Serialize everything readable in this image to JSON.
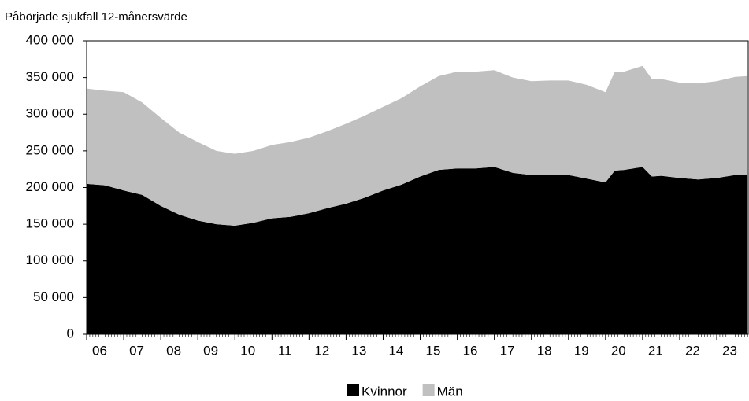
{
  "chart_data": {
    "type": "stacked-area",
    "title": "Påbörjade sjukfall 12-månersvärde",
    "x": [
      2006,
      2006.5,
      2007,
      2007.5,
      2008,
      2008.5,
      2009,
      2009.5,
      2010,
      2010.5,
      2011,
      2011.5,
      2012,
      2012.5,
      2013,
      2013.5,
      2014,
      2014.5,
      2015,
      2015.5,
      2016,
      2016.5,
      2017,
      2017.5,
      2018,
      2018.5,
      2019,
      2019.5,
      2020,
      2020.25,
      2020.5,
      2021,
      2021.25,
      2021.5,
      2022,
      2022.5,
      2023,
      2023.5,
      2023.83
    ],
    "series": [
      {
        "name": "Kvinnor",
        "color": "#000000",
        "values": [
          205000,
          203000,
          196000,
          190000,
          175000,
          163000,
          155000,
          150000,
          148000,
          152000,
          158000,
          160000,
          165000,
          172000,
          178000,
          186000,
          196000,
          204000,
          215000,
          224000,
          226000,
          226000,
          228000,
          220000,
          217000,
          217000,
          217000,
          212000,
          207000,
          223000,
          224000,
          228000,
          215000,
          216000,
          213000,
          211000,
          213000,
          217000,
          218000
        ]
      },
      {
        "name": "Män",
        "color": "#c0c0c0",
        "values": [
          130000,
          129000,
          134000,
          126000,
          120000,
          112000,
          107000,
          100000,
          98000,
          98000,
          100000,
          102000,
          103000,
          105000,
          109000,
          112000,
          114000,
          118000,
          123000,
          128000,
          132000,
          132000,
          132000,
          130000,
          128000,
          129000,
          129000,
          128000,
          123000,
          135000,
          134000,
          138000,
          133000,
          132000,
          130000,
          131000,
          132000,
          134000,
          134000
        ]
      }
    ],
    "xlim": [
      2006,
      2023.85
    ],
    "xticks": [
      {
        "value": 2006,
        "label": "06"
      },
      {
        "value": 2007,
        "label": "07"
      },
      {
        "value": 2008,
        "label": "08"
      },
      {
        "value": 2009,
        "label": "09"
      },
      {
        "value": 2010,
        "label": "10"
      },
      {
        "value": 2011,
        "label": "11"
      },
      {
        "value": 2012,
        "label": "12"
      },
      {
        "value": 2013,
        "label": "13"
      },
      {
        "value": 2014,
        "label": "14"
      },
      {
        "value": 2015,
        "label": "15"
      },
      {
        "value": 2016,
        "label": "16"
      },
      {
        "value": 2017,
        "label": "17"
      },
      {
        "value": 2018,
        "label": "18"
      },
      {
        "value": 2019,
        "label": "19"
      },
      {
        "value": 2020,
        "label": "20"
      },
      {
        "value": 2021,
        "label": "21"
      },
      {
        "value": 2022,
        "label": "22"
      },
      {
        "value": 2023,
        "label": "23"
      }
    ],
    "ylim": [
      0,
      400000
    ],
    "yticks": [
      0,
      {
        "value": 50000,
        "label": "50 000"
      },
      {
        "value": 100000,
        "label": "100 000"
      },
      {
        "value": 150000,
        "label": "150 000"
      },
      {
        "value": 200000,
        "label": "200 000"
      },
      {
        "value": 250000,
        "label": "250 000"
      },
      {
        "value": 300000,
        "label": "300 000"
      },
      {
        "value": 350000,
        "label": "350 000"
      },
      {
        "value": 400000,
        "label": "400 000"
      }
    ],
    "legend": "bottom"
  }
}
